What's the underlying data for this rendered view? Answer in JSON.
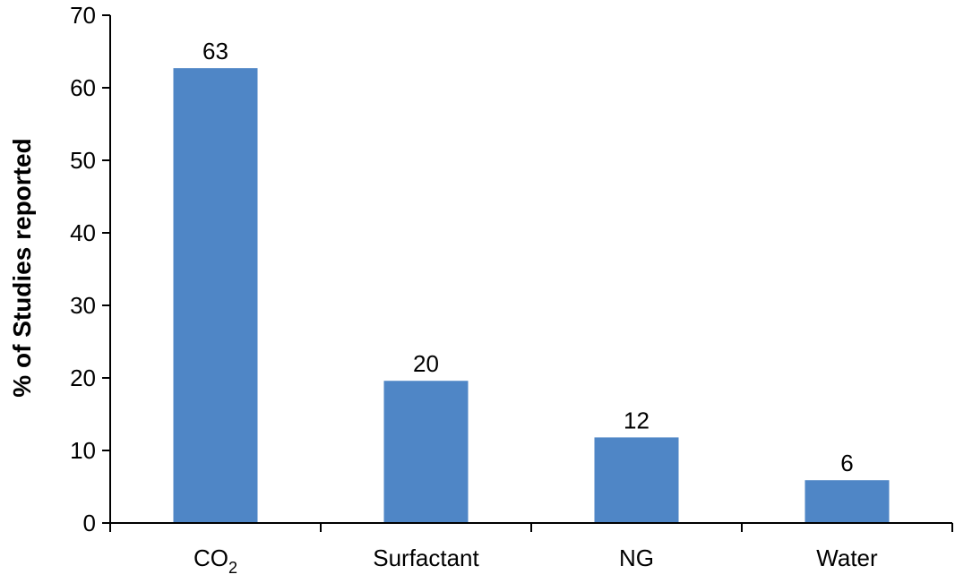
{
  "chart_data": {
    "type": "bar",
    "title": "",
    "xlabel": "",
    "ylabel": "% of Studies reported",
    "categories": [
      {
        "label": "CO",
        "subscript": "2"
      },
      {
        "label": "Surfactant",
        "subscript": ""
      },
      {
        "label": "NG",
        "subscript": ""
      },
      {
        "label": "Water",
        "subscript": ""
      }
    ],
    "values": [
      62.7,
      19.6,
      11.8,
      5.9
    ],
    "data_labels": [
      "63",
      "20",
      "12",
      "6"
    ],
    "ylim": [
      0,
      70
    ],
    "yticks": [
      0,
      10,
      20,
      30,
      40,
      50,
      60,
      70
    ],
    "grid": false,
    "legend": "none",
    "bar_color": "#4f86c6",
    "axis_color": "#000000"
  }
}
